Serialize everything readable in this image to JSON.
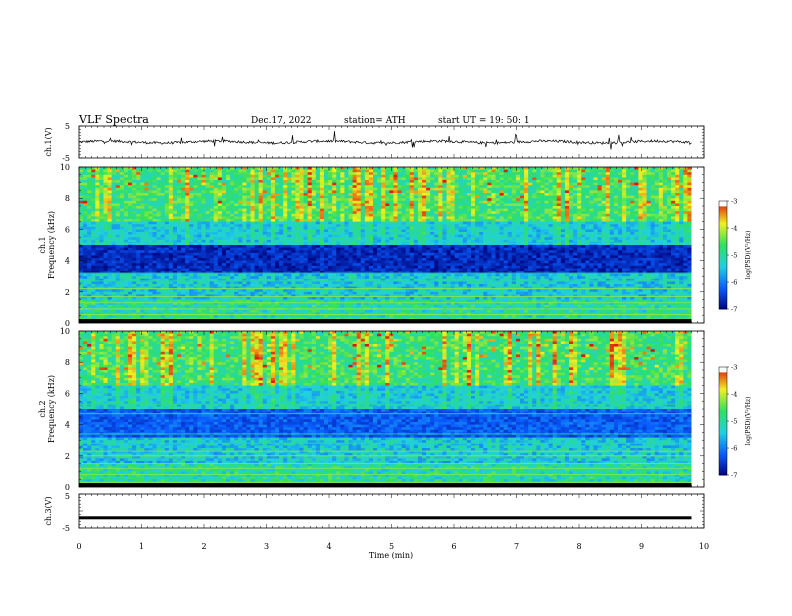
{
  "header": {
    "title": "VLF  Spectra",
    "date": "Dec.17, 2022",
    "station": "station= ATH",
    "start": "start  UT  =    19: 50: 1"
  },
  "chart_data": [
    {
      "type": "line",
      "name": "ch1-waveform",
      "ylabel": "ch.1(V)",
      "ylim": [
        -5,
        5
      ],
      "yticks": [
        "5",
        "-5"
      ],
      "xlim": [
        0,
        10
      ],
      "baseline": 0
    },
    {
      "type": "heatmap",
      "name": "ch1-spectrogram",
      "ylabel": "ch.1\nFrequency  (kHz)",
      "ylabel_channel": "ch.1",
      "ylabel_freq": "Frequency  (kHz)",
      "ylim": [
        0,
        10
      ],
      "yticks": [
        "0",
        "2",
        "4",
        "6",
        "8",
        "10"
      ],
      "colorbar": {
        "label": "log(PSD)(V²/Hz)",
        "range": [
          -7,
          -3
        ],
        "ticks": [
          "-3",
          "-4",
          "-5",
          "-6",
          "-7"
        ]
      }
    },
    {
      "type": "heatmap",
      "name": "ch2-spectrogram",
      "ylabel": "ch.2\nFrequency  (kHz)",
      "ylabel_channel": "ch.2",
      "ylabel_freq": "Frequency  (kHz)",
      "ylim": [
        0,
        10
      ],
      "yticks": [
        "0",
        "2",
        "4",
        "6",
        "8",
        "10"
      ],
      "colorbar": {
        "label": "log(PSD)(V²/Hz)",
        "range": [
          -7,
          -3
        ],
        "ticks": [
          "-3",
          "-4",
          "-5",
          "-6",
          "-7"
        ]
      }
    },
    {
      "type": "line",
      "name": "ch3-waveform",
      "ylabel": "ch.3(V)",
      "ylim": [
        -5,
        5
      ],
      "yticks": [
        "5",
        "-5"
      ],
      "xlim": [
        0,
        10
      ],
      "baseline": -2
    }
  ],
  "xaxis": {
    "label": "Time  (min)",
    "range": [
      0,
      10
    ],
    "ticks": [
      "0",
      "1",
      "2",
      "3",
      "4",
      "5",
      "6",
      "7",
      "8",
      "9",
      "10"
    ],
    "data_end": 9.8
  },
  "colors": {
    "low": "#00007a",
    "mid": "#0a5cff",
    "cyan": "#20d0e0",
    "green": "#30e060",
    "yellow": "#f0f020",
    "red": "#e01010"
  }
}
